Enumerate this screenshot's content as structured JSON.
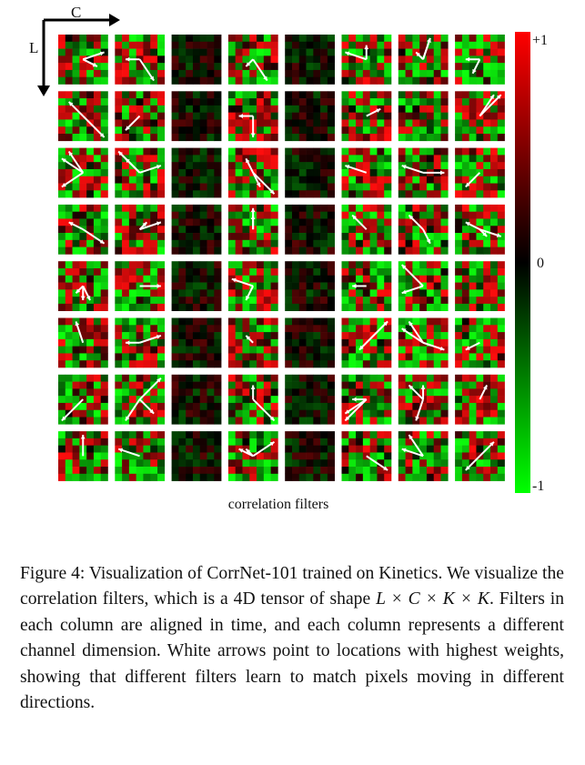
{
  "figure": {
    "axis_c": "C",
    "axis_l": "L",
    "xlabel": "correlation filters",
    "colorbar": {
      "top": "+1",
      "mid": "0",
      "bottom": "-1",
      "colors": [
        "#ff0000",
        "#000000",
        "#00ff00"
      ]
    }
  },
  "caption": {
    "prefix": "Figure 4: Visualization of CorrNet-101 trained on Kinetics. We visualize the correlation filters, which is a 4D tensor of shape ",
    "math": "L × C × K × K",
    "suffix": ". Filters in each column are aligned in time, and each column represents a different channel dimension. White arrows point to locations with highest weights, showing that different filters learn to match pixels moving in different directions."
  }
}
